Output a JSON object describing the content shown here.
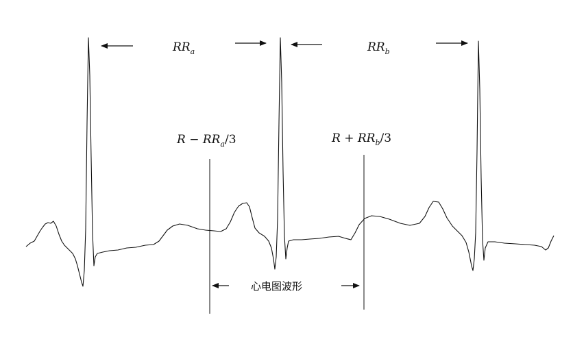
{
  "labels": {
    "rr_a": {
      "base": "RR",
      "sub": "a"
    },
    "rr_b": {
      "base": "RR",
      "sub": "b"
    },
    "window_start": {
      "prefix": "R − RR",
      "sub": "a",
      "suffix": "/3"
    },
    "window_end": {
      "prefix": "R + RR",
      "sub": "b",
      "suffix": "/3"
    },
    "waveform": "心电图波形"
  },
  "colors": {
    "ink": "#111111",
    "background": "#ffffff"
  }
}
